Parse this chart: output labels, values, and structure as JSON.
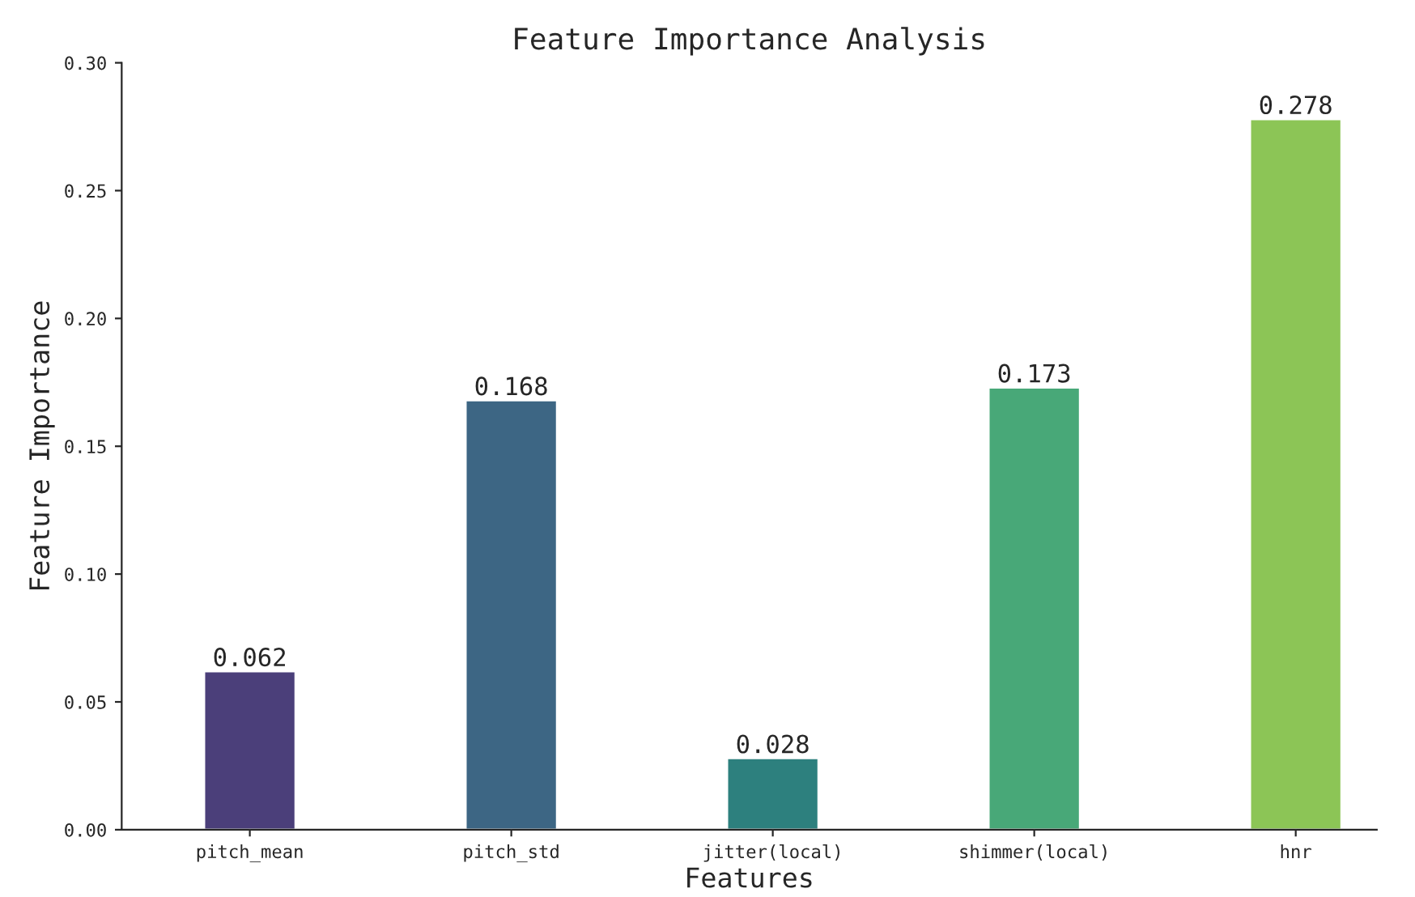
{
  "chart_data": {
    "type": "bar",
    "title": "Feature Importance Analysis",
    "xlabel": "Features",
    "ylabel": "Feature Importance",
    "categories": [
      "pitch_mean",
      "pitch_std",
      "jitter(local)",
      "shimmer(local)",
      "hnr"
    ],
    "values": [
      0.062,
      0.168,
      0.028,
      0.173,
      0.278
    ],
    "colors": [
      "#4b3f7a",
      "#3d6684",
      "#2d807e",
      "#48a878",
      "#8cc556"
    ],
    "ylim": [
      0,
      0.3
    ],
    "yticks": [
      {
        "value": 0,
        "label": "0.00"
      },
      {
        "value": 0.05,
        "label": "0.05"
      },
      {
        "value": 0.1,
        "label": "0.10"
      },
      {
        "value": 0.15,
        "label": "0.15"
      },
      {
        "value": 0.2,
        "label": "0.20"
      },
      {
        "value": 0.25,
        "label": "0.25"
      },
      {
        "value": 0.3,
        "label": "0.30"
      }
    ],
    "data_labels": true,
    "grid": false,
    "legend": false
  }
}
